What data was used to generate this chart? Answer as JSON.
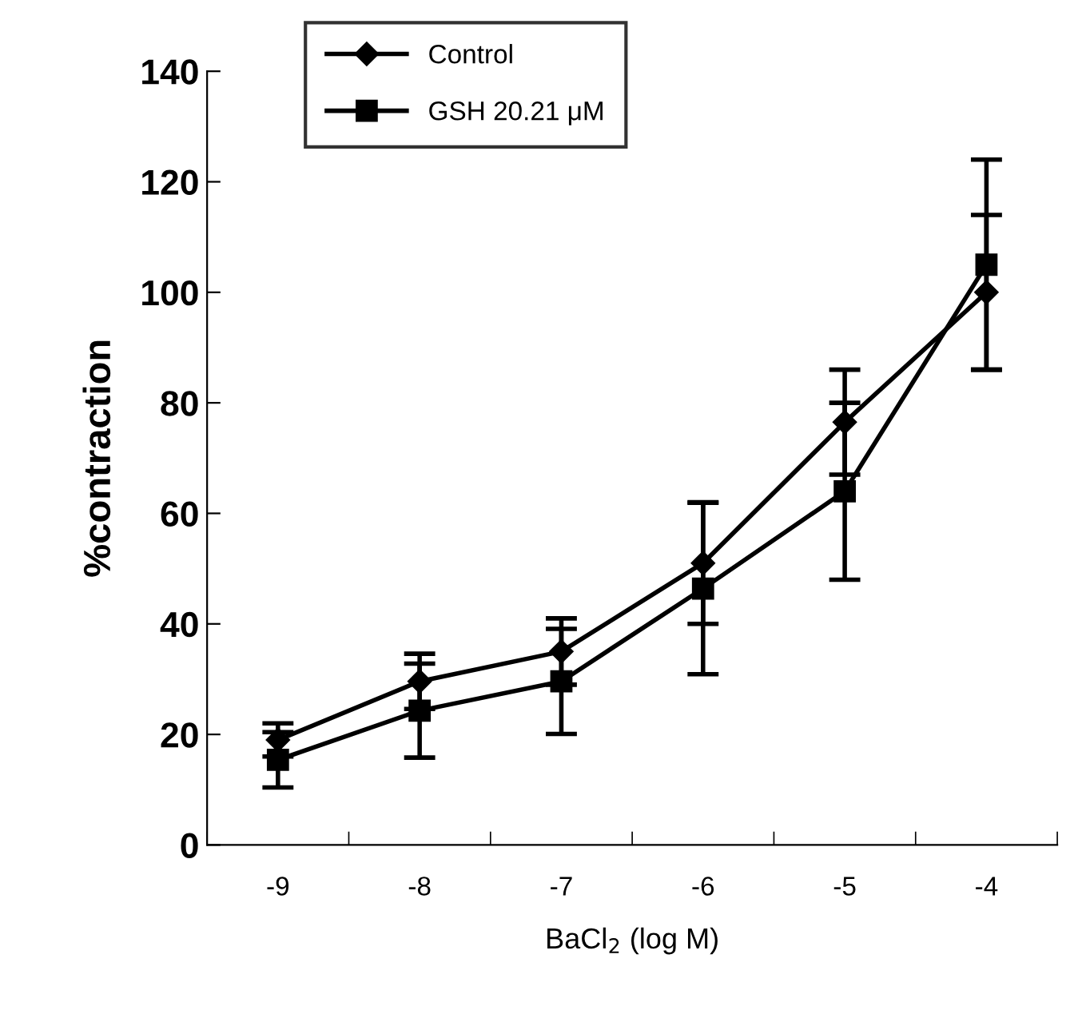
{
  "chart_data": {
    "type": "line",
    "xlabel": "BaCl$_{2}$ (log M)",
    "ylabel": "%contraction",
    "categories": [
      "-9",
      "-8",
      "-7",
      "-6",
      "-5",
      "-4"
    ],
    "ylim": [
      0,
      140
    ],
    "yticks": [
      0,
      20,
      40,
      60,
      80,
      100,
      120,
      140
    ],
    "grid": false,
    "legend": "top left",
    "series": [
      {
        "name": "Control",
        "color": "#000000",
        "marker": "diamond",
        "values": [
          19,
          29.6,
          35,
          51,
          76.5,
          100
        ],
        "errors": [
          3,
          5,
          6,
          11,
          9.5,
          14
        ]
      },
      {
        "name": "GSH 20.21 μM",
        "color": "#000000",
        "marker": "square",
        "values": [
          15.4,
          24.3,
          29.6,
          46.4,
          64,
          105
        ],
        "errors": [
          5,
          8.5,
          9.5,
          15.5,
          16,
          19
        ]
      }
    ]
  }
}
